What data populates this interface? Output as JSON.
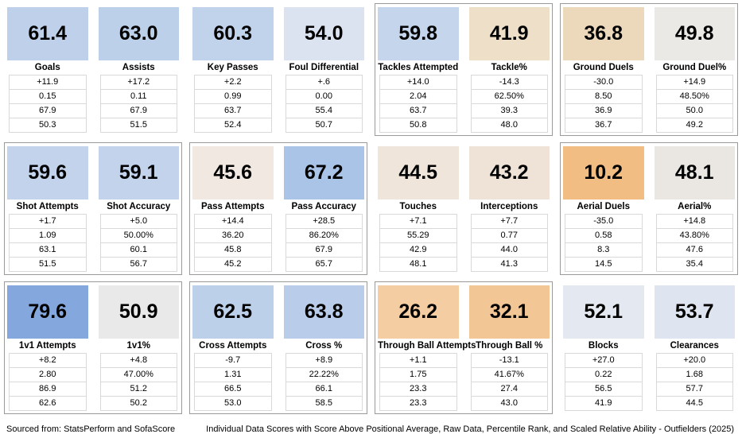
{
  "footer": {
    "source": "Sourced from: StatsPerform and SofaScore",
    "description": "Individual Data Scores with Score Above Positional Average, Raw Data, Percentile Rank, and Scaled Relative Ability - Outfielders (2025)"
  },
  "grid": {
    "rows": [
      {
        "groups": [
          {
            "bordered": false,
            "cards": [
              {
                "label": "Goals",
                "score": "61.4",
                "color": "#bfd1ea",
                "values": [
                  "+11.9",
                  "0.15",
                  "67.9",
                  "50.3"
                ]
              },
              {
                "label": "Assists",
                "score": "63.0",
                "color": "#bdd0ea",
                "values": [
                  "+17.2",
                  "0.11",
                  "67.9",
                  "51.5"
                ]
              }
            ]
          },
          {
            "bordered": false,
            "cards": [
              {
                "label": "Key Passes",
                "score": "60.3",
                "color": "#c1d2eb",
                "values": [
                  "+2.2",
                  "0.99",
                  "63.7",
                  "52.4"
                ]
              },
              {
                "label": "Foul Differential",
                "score": "54.0",
                "color": "#dbe3f1",
                "values": [
                  "+.6",
                  "0.00",
                  "55.4",
                  "50.7"
                ]
              }
            ]
          },
          {
            "bordered": true,
            "cards": [
              {
                "label": "Tackles Attempted",
                "score": "59.8",
                "color": "#c5d5ec",
                "values": [
                  "+14.0",
                  "2.04",
                  "63.7",
                  "50.8"
                ]
              },
              {
                "label": "Tackle%",
                "score": "41.9",
                "color": "#eedfc8",
                "values": [
                  "-14.3",
                  "62.50%",
                  "39.3",
                  "48.0"
                ]
              }
            ]
          },
          {
            "bordered": true,
            "cards": [
              {
                "label": "Ground Duels",
                "score": "36.8",
                "color": "#ecd8bb",
                "values": [
                  "-30.0",
                  "8.50",
                  "36.9",
                  "36.7"
                ]
              },
              {
                "label": "Ground Duel%",
                "score": "49.8",
                "color": "#ebe9e6",
                "values": [
                  "+14.9",
                  "48.50%",
                  "50.0",
                  "49.2"
                ]
              }
            ]
          }
        ]
      },
      {
        "groups": [
          {
            "bordered": true,
            "cards": [
              {
                "label": "Shot Attempts",
                "score": "59.6",
                "color": "#c2d3eb",
                "values": [
                  "+1.7",
                  "1.09",
                  "63.1",
                  "51.5"
                ]
              },
              {
                "label": "Shot Accuracy",
                "score": "59.1",
                "color": "#c3d3eb",
                "values": [
                  "+5.0",
                  "50.00%",
                  "60.1",
                  "56.7"
                ]
              }
            ]
          },
          {
            "bordered": true,
            "cards": [
              {
                "label": "Pass Attempts",
                "score": "45.6",
                "color": "#f1e8e1",
                "values": [
                  "+14.4",
                  "36.20",
                  "45.8",
                  "45.2"
                ]
              },
              {
                "label": "Pass Accuracy",
                "score": "67.2",
                "color": "#aac4e7",
                "values": [
                  "+28.5",
                  "86.20%",
                  "67.9",
                  "65.7"
                ]
              }
            ]
          },
          {
            "bordered": false,
            "cards": [
              {
                "label": "Touches",
                "score": "44.5",
                "color": "#f0e5db",
                "values": [
                  "+7.1",
                  "55.29",
                  "42.9",
                  "48.1"
                ]
              },
              {
                "label": "Interceptions",
                "score": "43.2",
                "color": "#efe2d6",
                "values": [
                  "+7.7",
                  "0.77",
                  "44.0",
                  "41.3"
                ]
              }
            ]
          },
          {
            "bordered": true,
            "cards": [
              {
                "label": "Aerial Duels",
                "score": "10.2",
                "color": "#f2bd82",
                "values": [
                  "-35.0",
                  "0.58",
                  "8.3",
                  "14.5"
                ]
              },
              {
                "label": "Aerial%",
                "score": "48.1",
                "color": "#eae7e3",
                "values": [
                  "+14.8",
                  "43.80%",
                  "47.6",
                  "35.4"
                ]
              }
            ]
          }
        ]
      },
      {
        "groups": [
          {
            "bordered": true,
            "cards": [
              {
                "label": "1v1 Attempts",
                "score": "79.6",
                "color": "#84a8de",
                "values": [
                  "+8.2",
                  "2.80",
                  "86.9",
                  "62.6"
                ]
              },
              {
                "label": "1v1%",
                "score": "50.9",
                "color": "#e9e9e9",
                "values": [
                  "+4.8",
                  "47.00%",
                  "51.2",
                  "50.2"
                ]
              }
            ]
          },
          {
            "bordered": true,
            "cards": [
              {
                "label": "Cross Attempts",
                "score": "62.5",
                "color": "#bdd0ea",
                "values": [
                  "-9.7",
                  "1.31",
                  "66.5",
                  "53.0"
                ]
              },
              {
                "label": "Cross %",
                "score": "63.8",
                "color": "#b9cce9",
                "values": [
                  "+8.9",
                  "22.22%",
                  "66.1",
                  "58.5"
                ]
              }
            ]
          },
          {
            "bordered": true,
            "cards": [
              {
                "label": "Through Ball Attempts",
                "score": "26.2",
                "color": "#f4cda3",
                "values": [
                  "+1.1",
                  "1.75",
                  "23.3",
                  "23.3"
                ]
              },
              {
                "label": "Through Ball %",
                "score": "32.1",
                "color": "#f3c695",
                "values": [
                  "-13.1",
                  "41.67%",
                  "27.4",
                  "43.0"
                ]
              }
            ]
          },
          {
            "bordered": false,
            "cards": [
              {
                "label": "Blocks",
                "score": "52.1",
                "color": "#e4e9f1",
                "values": [
                  "+27.0",
                  "0.22",
                  "56.5",
                  "41.9"
                ]
              },
              {
                "label": "Clearances",
                "score": "53.7",
                "color": "#dfe5f0",
                "values": [
                  "+20.0",
                  "1.68",
                  "57.7",
                  "44.5"
                ]
              }
            ]
          }
        ]
      }
    ]
  },
  "chart_data": {
    "type": "table",
    "title": "Individual Data Scores with Score Above Positional Average, Raw Data, Percentile Rank, and Scaled Relative Ability - Outfielders (2025)",
    "source": "StatsPerform and SofaScore",
    "row_labels": [
      "Score",
      "Score Above Positional Average",
      "Raw Data",
      "Percentile Rank",
      "Scaled Relative Ability"
    ],
    "color_scale": {
      "high": "#84a8de",
      "mid": "#e9e9e9",
      "low": "#f2bd82"
    },
    "metrics": [
      {
        "label": "Goals",
        "score": 61.4,
        "above_avg": 11.9,
        "raw": "0.15",
        "percentile": 67.9,
        "scaled": 50.3
      },
      {
        "label": "Assists",
        "score": 63.0,
        "above_avg": 17.2,
        "raw": "0.11",
        "percentile": 67.9,
        "scaled": 51.5
      },
      {
        "label": "Key Passes",
        "score": 60.3,
        "above_avg": 2.2,
        "raw": "0.99",
        "percentile": 63.7,
        "scaled": 52.4
      },
      {
        "label": "Foul Differential",
        "score": 54.0,
        "above_avg": 0.6,
        "raw": "0.00",
        "percentile": 55.4,
        "scaled": 50.7
      },
      {
        "label": "Tackles Attempted",
        "score": 59.8,
        "above_avg": 14.0,
        "raw": "2.04",
        "percentile": 63.7,
        "scaled": 50.8
      },
      {
        "label": "Tackle%",
        "score": 41.9,
        "above_avg": -14.3,
        "raw": "62.50%",
        "percentile": 39.3,
        "scaled": 48.0
      },
      {
        "label": "Ground Duels",
        "score": 36.8,
        "above_avg": -30.0,
        "raw": "8.50",
        "percentile": 36.9,
        "scaled": 36.7
      },
      {
        "label": "Ground Duel%",
        "score": 49.8,
        "above_avg": 14.9,
        "raw": "48.50%",
        "percentile": 50.0,
        "scaled": 49.2
      },
      {
        "label": "Shot Attempts",
        "score": 59.6,
        "above_avg": 1.7,
        "raw": "1.09",
        "percentile": 63.1,
        "scaled": 51.5
      },
      {
        "label": "Shot Accuracy",
        "score": 59.1,
        "above_avg": 5.0,
        "raw": "50.00%",
        "percentile": 60.1,
        "scaled": 56.7
      },
      {
        "label": "Pass Attempts",
        "score": 45.6,
        "above_avg": 14.4,
        "raw": "36.20",
        "percentile": 45.8,
        "scaled": 45.2
      },
      {
        "label": "Pass Accuracy",
        "score": 67.2,
        "above_avg": 28.5,
        "raw": "86.20%",
        "percentile": 67.9,
        "scaled": 65.7
      },
      {
        "label": "Touches",
        "score": 44.5,
        "above_avg": 7.1,
        "raw": "55.29",
        "percentile": 42.9,
        "scaled": 48.1
      },
      {
        "label": "Interceptions",
        "score": 43.2,
        "above_avg": 7.7,
        "raw": "0.77",
        "percentile": 44.0,
        "scaled": 41.3
      },
      {
        "label": "Aerial Duels",
        "score": 10.2,
        "above_avg": -35.0,
        "raw": "0.58",
        "percentile": 8.3,
        "scaled": 14.5
      },
      {
        "label": "Aerial%",
        "score": 48.1,
        "above_avg": 14.8,
        "raw": "43.80%",
        "percentile": 47.6,
        "scaled": 35.4
      },
      {
        "label": "1v1 Attempts",
        "score": 79.6,
        "above_avg": 8.2,
        "raw": "2.80",
        "percentile": 86.9,
        "scaled": 62.6
      },
      {
        "label": "1v1%",
        "score": 50.9,
        "above_avg": 4.8,
        "raw": "47.00%",
        "percentile": 51.2,
        "scaled": 50.2
      },
      {
        "label": "Cross Attempts",
        "score": 62.5,
        "above_avg": -9.7,
        "raw": "1.31",
        "percentile": 66.5,
        "scaled": 53.0
      },
      {
        "label": "Cross %",
        "score": 63.8,
        "above_avg": 8.9,
        "raw": "22.22%",
        "percentile": 66.1,
        "scaled": 58.5
      },
      {
        "label": "Through Ball Attempts",
        "score": 26.2,
        "above_avg": 1.1,
        "raw": "1.75",
        "percentile": 23.3,
        "scaled": 23.3
      },
      {
        "label": "Through Ball %",
        "score": 32.1,
        "above_avg": -13.1,
        "raw": "41.67%",
        "percentile": 27.4,
        "scaled": 43.0
      },
      {
        "label": "Blocks",
        "score": 52.1,
        "above_avg": 27.0,
        "raw": "0.22",
        "percentile": 56.5,
        "scaled": 41.9
      },
      {
        "label": "Clearances",
        "score": 53.7,
        "above_avg": 20.0,
        "raw": "1.68",
        "percentile": 57.7,
        "scaled": 44.5
      }
    ]
  }
}
